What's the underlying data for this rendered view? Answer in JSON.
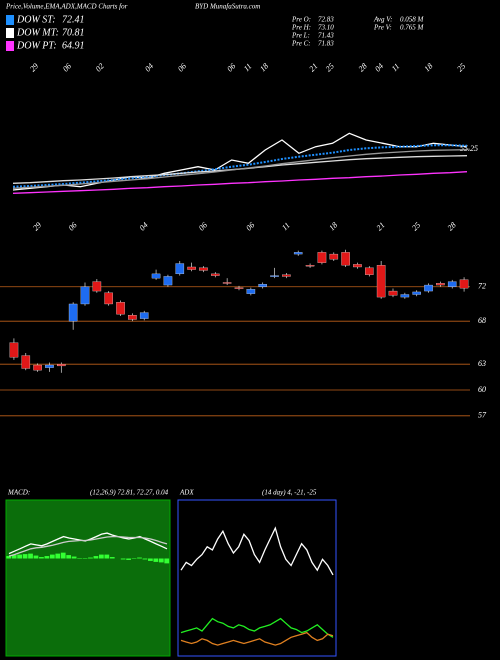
{
  "header": {
    "title": "Price,Volume,EMA,ADX,MACD Charts for",
    "symbol": "BYD MunafaSutra.com",
    "legend": [
      {
        "name": "DOW ST:",
        "value": 72.41,
        "color": "#1e90ff"
      },
      {
        "name": "DOW MT:",
        "value": 70.81,
        "color": "#ffffff"
      },
      {
        "name": "DOW PT:",
        "value": 64.91,
        "color": "#ff33ff"
      }
    ],
    "stats": [
      {
        "label": "Pre  O:",
        "value": "72.83"
      },
      {
        "label": "Avg V:",
        "value": "0.058 M"
      },
      {
        "label": "Pre  H:",
        "value": "73.10"
      },
      {
        "label": "Pre  V:",
        "value": "0.765 M"
      },
      {
        "label": "Pre  L:",
        "value": "71.43"
      },
      {
        "label": "Pre  C:",
        "value": "71.83"
      }
    ]
  },
  "chart_data": [
    {
      "type": "line",
      "categories": [
        null,
        "29",
        null,
        "06",
        null,
        "02",
        null,
        null,
        "04",
        null,
        "06",
        null,
        null,
        "06",
        "11",
        "18",
        null,
        null,
        "21",
        "25",
        null,
        "28",
        "04",
        "11",
        null,
        "18",
        null,
        "25"
      ],
      "ylim": [
        40,
        82
      ],
      "yticks": [
        55.25
      ],
      "series": [
        {
          "name": "Price",
          "color": "#ffffff",
          "values": [
            43,
            43.5,
            44,
            44.5,
            44,
            45,
            46,
            47,
            46.5,
            48,
            49,
            50,
            49,
            52,
            51,
            55,
            58,
            54,
            56,
            57,
            60,
            58,
            57,
            56,
            56,
            57,
            56.5,
            56
          ]
        },
        {
          "name": "EMA ST",
          "color": "#1e90ff",
          "dash": true,
          "values": [
            44,
            44.2,
            44.5,
            44.8,
            45.2,
            45.6,
            46,
            46.5,
            47,
            47.5,
            48,
            48.6,
            49.2,
            50,
            50.6,
            51.4,
            52.3,
            53,
            53.6,
            54.2,
            55,
            55.5,
            55.8,
            56,
            56.2,
            56.4,
            56.4,
            56.3
          ]
        },
        {
          "name": "EMA MT",
          "color": "#dddddd",
          "values": [
            45,
            45.2,
            45.5,
            45.8,
            46,
            46.3,
            46.6,
            47,
            47.3,
            47.6,
            48,
            48.4,
            48.7,
            49.1,
            49.5,
            50,
            50.5,
            50.9,
            51.3,
            51.7,
            52.1,
            52.4,
            52.6,
            52.8,
            53,
            53.1,
            53.2,
            53.3
          ]
        },
        {
          "name": "EMA LT",
          "color": "#999999",
          "values": [
            43.5,
            43.8,
            44.1,
            44.4,
            44.8,
            45.2,
            45.6,
            46,
            46.4,
            46.9,
            47.4,
            47.9,
            48.4,
            49,
            49.6,
            50.2,
            50.9,
            51.5,
            52.1,
            52.7,
            53.2,
            53.7,
            54.1,
            54.4,
            54.7,
            54.9,
            55,
            55.1
          ]
        },
        {
          "name": "DOW PT",
          "color": "#ff33ff",
          "values": [
            42,
            42.2,
            42.4,
            42.6,
            42.8,
            43,
            43.2,
            43.5,
            43.7,
            44,
            44.2,
            44.5,
            44.7,
            45,
            45.2,
            45.5,
            45.7,
            46,
            46.2,
            46.5,
            46.7,
            47,
            47.2,
            47.5,
            47.7,
            48,
            48.2,
            48.5
          ]
        }
      ]
    },
    {
      "type": "candlestick",
      "up_color": "#1e6cf0",
      "down_color": "#e01818",
      "line_color": "#c0601a",
      "categories": [
        null,
        null,
        "29",
        null,
        null,
        "06",
        null,
        null,
        null,
        null,
        null,
        "04",
        null,
        null,
        null,
        null,
        "06",
        null,
        null,
        null,
        "06",
        null,
        null,
        "11",
        null,
        null,
        null,
        "18",
        null,
        null,
        null,
        "21",
        null,
        null,
        "25",
        null,
        null,
        "28",
        null
      ],
      "ylim": [
        50,
        78.6
      ],
      "yticks": [
        72,
        68,
        63,
        60,
        57
      ],
      "open": [
        65.5,
        64,
        62.9,
        62.6,
        63,
        68,
        70,
        72.6,
        71.3,
        70.2,
        68.7,
        68.3,
        73,
        72.2,
        73.5,
        74.3,
        74.2,
        73.5,
        72.5,
        71.9,
        71.2,
        72,
        73.2,
        73.4,
        75.8,
        74.5,
        76,
        75.8,
        76,
        74.6,
        74.2,
        74.5,
        71.5,
        70.8,
        71.1,
        71.5,
        72.4,
        72,
        72.83
      ],
      "high": [
        66,
        64.3,
        63.1,
        63.2,
        63.2,
        70.2,
        72.5,
        72.9,
        71.5,
        70.4,
        68.9,
        69.2,
        74,
        73.4,
        75,
        74.8,
        74.4,
        73.7,
        73,
        72.1,
        71.9,
        72.5,
        74.2,
        73.6,
        76.2,
        74.7,
        76.2,
        76,
        76.3,
        74.8,
        74.4,
        75,
        71.8,
        71.3,
        71.6,
        72.4,
        72.6,
        72.8,
        73.1
      ],
      "low": [
        63.5,
        62.3,
        62.1,
        62.1,
        62,
        67,
        69.8,
        71.3,
        69.8,
        68.6,
        68,
        68.1,
        72.8,
        72,
        73.3,
        73.8,
        73.7,
        73.1,
        72.2,
        71.6,
        71,
        71.8,
        73,
        73,
        75.6,
        74.2,
        74.6,
        75,
        74.3,
        74.1,
        73.2,
        70.6,
        70.8,
        70.6,
        70.9,
        71.3,
        72,
        71.8,
        71.43
      ],
      "close": [
        63.8,
        62.5,
        62.3,
        62.9,
        62.8,
        70,
        72,
        71.5,
        70,
        68.8,
        68.2,
        69,
        73.5,
        73.2,
        74.7,
        74,
        73.9,
        73.3,
        72.4,
        71.8,
        71.7,
        72.3,
        73.3,
        73.2,
        76,
        74.4,
        74.8,
        75.2,
        74.5,
        74.3,
        73.4,
        70.8,
        71,
        71.1,
        71.4,
        72.2,
        72.2,
        72.6,
        71.83
      ]
    },
    {
      "type": "macd",
      "title": "MACD:",
      "params": "(12,26,9) 72.81, 72.27, 0.04",
      "background": "#0b6e0b",
      "ylim": [
        -2,
        1.2
      ],
      "series": [
        {
          "name": "MACD",
          "color": "#ffffff",
          "values": [
            0.1,
            0.15,
            0.2,
            0.25,
            0.3,
            0.28,
            0.26,
            0.3,
            0.35,
            0.4,
            0.45,
            0.42,
            0.4,
            0.38,
            0.36,
            0.4,
            0.45,
            0.5,
            0.52,
            0.48,
            0.45,
            0.42,
            0.4,
            0.42,
            0.45,
            0.4,
            0.35,
            0.3,
            0.25,
            0.2
          ]
        },
        {
          "name": "Signal",
          "color": "#cccccc",
          "values": [
            0.05,
            0.08,
            0.12,
            0.16,
            0.2,
            0.22,
            0.23,
            0.25,
            0.27,
            0.3,
            0.33,
            0.35,
            0.36,
            0.37,
            0.37,
            0.38,
            0.4,
            0.42,
            0.44,
            0.45,
            0.45,
            0.44,
            0.43,
            0.43,
            0.43,
            0.42,
            0.4,
            0.37,
            0.33,
            0.3
          ]
        }
      ],
      "histogram": {
        "color": "#33ff33",
        "values": [
          0.05,
          0.07,
          0.08,
          0.09,
          0.1,
          0.06,
          0.03,
          0.05,
          0.08,
          0.1,
          0.12,
          0.07,
          0.04,
          0.01,
          -0.01,
          0.02,
          0.05,
          0.08,
          0.08,
          0.03,
          0,
          -0.02,
          -0.03,
          -0.01,
          0.02,
          -0.02,
          -0.05,
          -0.07,
          -0.08,
          -0.1
        ]
      }
    },
    {
      "type": "line",
      "title": "ADX",
      "params": "(14 day) 4, -21, -25",
      "border": "#3355ff",
      "ylim": [
        0,
        100
      ],
      "series": [
        {
          "name": "ADX",
          "color": "#ffffff",
          "values": [
            55,
            60,
            58,
            62,
            65,
            70,
            68,
            75,
            80,
            72,
            66,
            70,
            78,
            74,
            65,
            60,
            68,
            75,
            82,
            70,
            62,
            58,
            65,
            72,
            68,
            60,
            55,
            62,
            58,
            52
          ]
        },
        {
          "name": "+DI",
          "color": "#22ee22",
          "values": [
            15,
            16,
            17,
            18,
            16,
            20,
            24,
            22,
            21,
            19,
            18,
            20,
            19,
            17,
            16,
            18,
            19,
            20,
            22,
            24,
            21,
            18,
            17,
            15,
            16,
            18,
            20,
            17,
            14,
            12
          ]
        },
        {
          "name": "-DI",
          "color": "#e08020",
          "values": [
            10,
            9,
            8,
            9,
            11,
            10,
            8,
            7,
            8,
            9,
            10,
            9,
            8,
            9,
            10,
            11,
            9,
            8,
            7,
            8,
            10,
            12,
            13,
            14,
            15,
            12,
            10,
            11,
            14,
            13
          ]
        }
      ]
    }
  ]
}
